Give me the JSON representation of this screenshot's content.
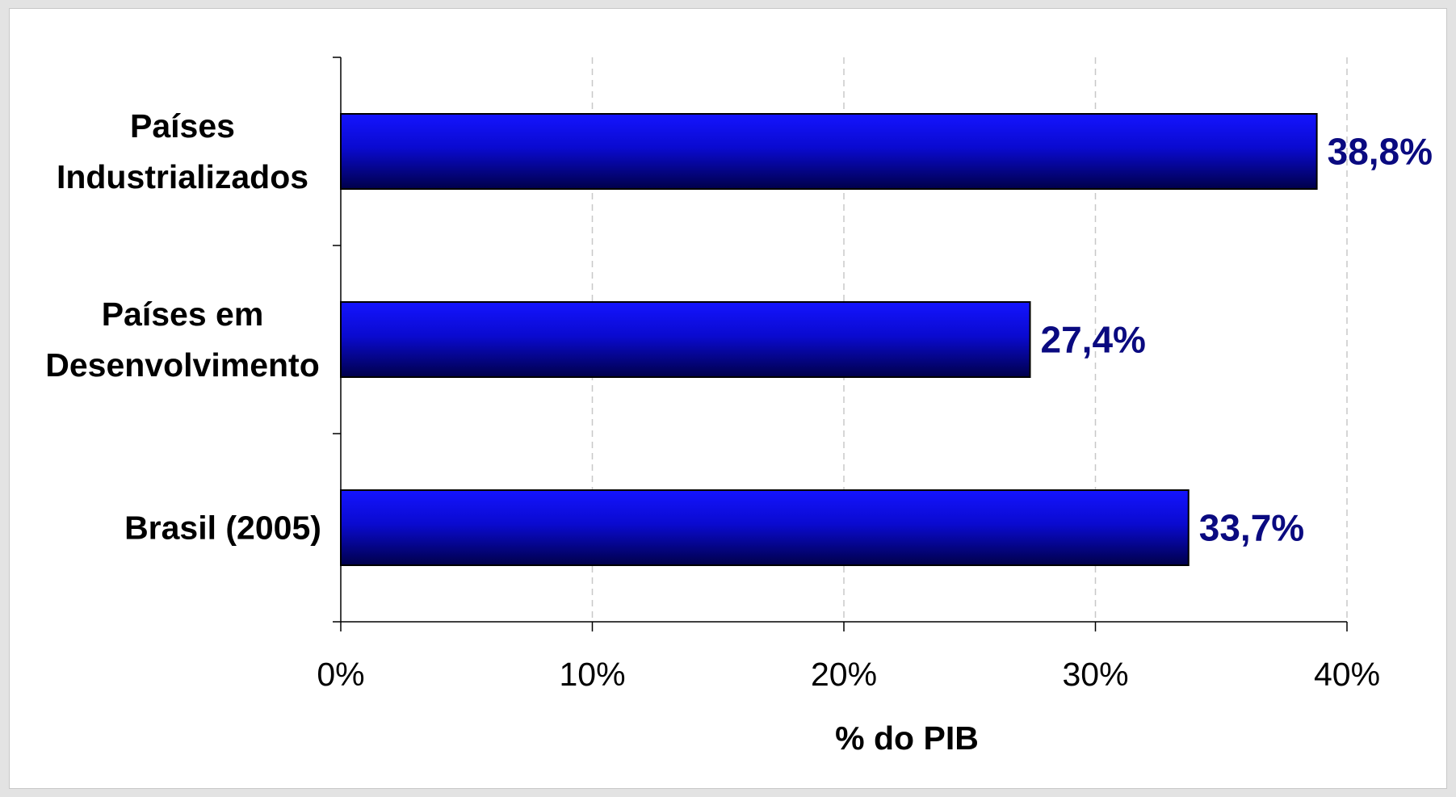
{
  "chart_data": {
    "type": "bar",
    "orientation": "horizontal",
    "categories": [
      [
        "Países",
        "Industrializados"
      ],
      [
        "Países em",
        "Desenvolvimento"
      ],
      [
        "Brasil (2005)"
      ]
    ],
    "values": [
      38.8,
      27.4,
      33.7
    ],
    "data_labels": [
      "38,8%",
      "27,4%",
      "33,7%"
    ],
    "xlabel": "% do PIB",
    "xlim": [
      0,
      40
    ],
    "x_ticks": [
      0,
      10,
      20,
      30,
      40
    ],
    "x_tick_labels": [
      "0%",
      "10%",
      "20%",
      "30%",
      "40%"
    ],
    "grid": true,
    "bar_color_top": "#1414ff",
    "bar_color_bottom": "#00004a",
    "data_label_color": "#0a0a80"
  }
}
